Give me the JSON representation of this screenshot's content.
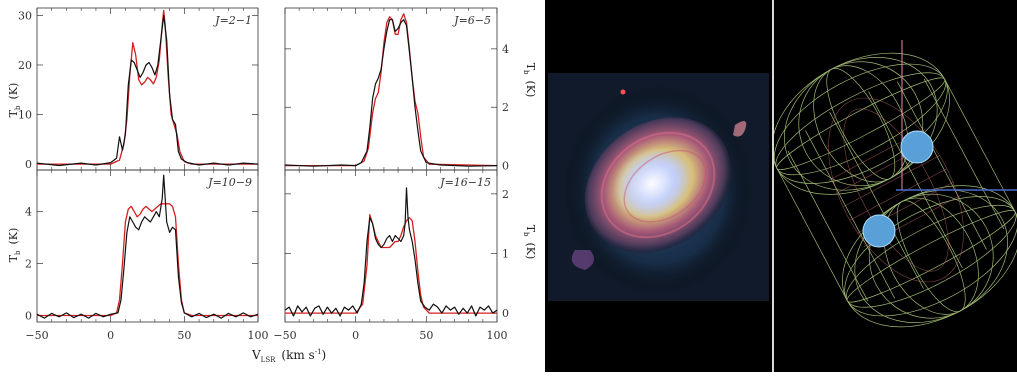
{
  "chart_data": {
    "type": "line",
    "x_label": "V",
    "x_label_sub": "LSR",
    "x_label_units": "(km s",
    "x_label_sup": "-1",
    "x_label_close": ")",
    "y_label": "T",
    "y_label_sub": "b",
    "y_label_units": "(K)",
    "xlim": [
      -50,
      100
    ],
    "x_ticks": [
      "−50",
      "0",
      "50",
      "100"
    ],
    "series_colors": {
      "observed": "#111111",
      "model": "#d42020"
    },
    "panels": [
      {
        "id": "p1",
        "label": "J=2−1",
        "ylim": [
          -1.2,
          31.5
        ],
        "y_ticks": [
          "0",
          "10",
          "20",
          "30"
        ],
        "y_tick_values": [
          0,
          10,
          20,
          30
        ],
        "y_side": "left",
        "observed": [
          [
            -50,
            0.2
          ],
          [
            -35,
            -0.3
          ],
          [
            -20,
            0.2
          ],
          [
            -10,
            -0.2
          ],
          [
            0,
            0.3
          ],
          [
            4,
            1.2
          ],
          [
            6,
            5.5
          ],
          [
            8,
            2.8
          ],
          [
            10,
            6
          ],
          [
            12,
            16
          ],
          [
            14,
            21
          ],
          [
            16,
            20.5
          ],
          [
            18,
            19
          ],
          [
            20,
            17.5
          ],
          [
            22,
            18.5
          ],
          [
            24,
            20
          ],
          [
            26,
            20.5
          ],
          [
            28,
            19.5
          ],
          [
            30,
            18
          ],
          [
            32,
            20
          ],
          [
            34,
            25
          ],
          [
            36,
            30
          ],
          [
            38,
            25
          ],
          [
            40,
            14
          ],
          [
            42,
            9
          ],
          [
            44,
            8
          ],
          [
            46,
            2.5
          ],
          [
            48,
            1
          ],
          [
            52,
            0.3
          ],
          [
            60,
            -0.2
          ],
          [
            70,
            0.2
          ],
          [
            80,
            -0.2
          ],
          [
            90,
            0.2
          ],
          [
            100,
            0
          ]
        ],
        "model": [
          [
            -50,
            0
          ],
          [
            0,
            0
          ],
          [
            6,
            0.8
          ],
          [
            9,
            4
          ],
          [
            11,
            9
          ],
          [
            13,
            18
          ],
          [
            15,
            24.5
          ],
          [
            17,
            22
          ],
          [
            19,
            17
          ],
          [
            21,
            16
          ],
          [
            23,
            16.5
          ],
          [
            25,
            17.5
          ],
          [
            27,
            17
          ],
          [
            29,
            16.2
          ],
          [
            31,
            17.5
          ],
          [
            33,
            21
          ],
          [
            35,
            28
          ],
          [
            36,
            31
          ],
          [
            37,
            28
          ],
          [
            39,
            18
          ],
          [
            41,
            10
          ],
          [
            43,
            8
          ],
          [
            45,
            6
          ],
          [
            47,
            2.5
          ],
          [
            50,
            0.5
          ],
          [
            55,
            0
          ],
          [
            100,
            0
          ]
        ]
      },
      {
        "id": "p2",
        "label": "J=6−5",
        "ylim": [
          -0.15,
          5.4
        ],
        "y_ticks": [
          "0",
          "2",
          "4"
        ],
        "y_tick_values": [
          0,
          2,
          4
        ],
        "y_side": "right",
        "observed": [
          [
            -50,
            0.02
          ],
          [
            -30,
            -0.02
          ],
          [
            -10,
            0.02
          ],
          [
            0,
            0
          ],
          [
            4,
            0.1
          ],
          [
            8,
            0.5
          ],
          [
            10,
            1.3
          ],
          [
            12,
            2.3
          ],
          [
            14,
            2.8
          ],
          [
            16,
            3.0
          ],
          [
            18,
            3.3
          ],
          [
            20,
            4.0
          ],
          [
            22,
            4.6
          ],
          [
            24,
            5.0
          ],
          [
            26,
            5.0
          ],
          [
            28,
            4.6
          ],
          [
            30,
            4.7
          ],
          [
            32,
            4.9
          ],
          [
            34,
            5.0
          ],
          [
            36,
            4.8
          ],
          [
            38,
            3.9
          ],
          [
            40,
            3.0
          ],
          [
            42,
            2.0
          ],
          [
            44,
            1.2
          ],
          [
            46,
            0.5
          ],
          [
            50,
            0.1
          ],
          [
            60,
            0.02
          ],
          [
            80,
            -0.02
          ],
          [
            100,
            0
          ]
        ],
        "model": [
          [
            -50,
            0
          ],
          [
            0,
            0
          ],
          [
            6,
            0.15
          ],
          [
            9,
            0.6
          ],
          [
            12,
            1.8
          ],
          [
            14,
            2.3
          ],
          [
            16,
            2.5
          ],
          [
            18,
            3.2
          ],
          [
            20,
            4.2
          ],
          [
            22,
            4.9
          ],
          [
            24,
            5.1
          ],
          [
            26,
            5.0
          ],
          [
            28,
            4.5
          ],
          [
            30,
            4.5
          ],
          [
            32,
            5.0
          ],
          [
            34,
            5.2
          ],
          [
            36,
            4.9
          ],
          [
            38,
            4.0
          ],
          [
            40,
            3.0
          ],
          [
            42,
            2.2
          ],
          [
            44,
            1.8
          ],
          [
            46,
            1.0
          ],
          [
            48,
            0.3
          ],
          [
            52,
            0.05
          ],
          [
            100,
            0
          ]
        ]
      },
      {
        "id": "p3",
        "label": "J=10−9",
        "ylim": [
          -0.25,
          5.6
        ],
        "y_ticks": [
          "0",
          "2",
          "4"
        ],
        "y_tick_values": [
          0,
          2,
          4
        ],
        "y_side": "left",
        "observed": [
          [
            -50,
            0.05
          ],
          [
            -45,
            -0.1
          ],
          [
            -40,
            0.08
          ],
          [
            -35,
            -0.05
          ],
          [
            -30,
            0.1
          ],
          [
            -25,
            -0.08
          ],
          [
            -20,
            0.05
          ],
          [
            -15,
            -0.1
          ],
          [
            -10,
            0.08
          ],
          [
            -5,
            -0.05
          ],
          [
            0,
            0.05
          ],
          [
            5,
            0.1
          ],
          [
            7,
            0.6
          ],
          [
            9,
            1.8
          ],
          [
            11,
            3.2
          ],
          [
            13,
            3.8
          ],
          [
            15,
            3.6
          ],
          [
            17,
            3.4
          ],
          [
            19,
            3.3
          ],
          [
            21,
            3.6
          ],
          [
            23,
            3.8
          ],
          [
            25,
            3.7
          ],
          [
            27,
            3.6
          ],
          [
            29,
            3.8
          ],
          [
            31,
            4.0
          ],
          [
            33,
            3.8
          ],
          [
            35,
            4.5
          ],
          [
            36,
            5.4
          ],
          [
            37,
            4.5
          ],
          [
            38,
            3.6
          ],
          [
            40,
            3.2
          ],
          [
            42,
            3.4
          ],
          [
            44,
            3.3
          ],
          [
            46,
            1.5
          ],
          [
            48,
            0.5
          ],
          [
            50,
            0.1
          ],
          [
            55,
            -0.05
          ],
          [
            60,
            0.08
          ],
          [
            65,
            -0.08
          ],
          [
            70,
            0.05
          ],
          [
            75,
            -0.1
          ],
          [
            80,
            0.08
          ],
          [
            85,
            -0.05
          ],
          [
            90,
            0.1
          ],
          [
            95,
            -0.05
          ],
          [
            100,
            0.05
          ]
        ],
        "model": [
          [
            -50,
            0
          ],
          [
            0,
            0
          ],
          [
            4,
            0.1
          ],
          [
            6,
            0.6
          ],
          [
            8,
            2
          ],
          [
            10,
            3.6
          ],
          [
            12,
            4.1
          ],
          [
            14,
            4.2
          ],
          [
            16,
            4.0
          ],
          [
            18,
            3.8
          ],
          [
            20,
            3.9
          ],
          [
            22,
            4.1
          ],
          [
            24,
            4.2
          ],
          [
            26,
            4.1
          ],
          [
            28,
            4.0
          ],
          [
            30,
            4.1
          ],
          [
            32,
            4.2
          ],
          [
            34,
            4.3
          ],
          [
            36,
            4.3
          ],
          [
            38,
            4.3
          ],
          [
            40,
            4.3
          ],
          [
            42,
            4.2
          ],
          [
            44,
            3.8
          ],
          [
            46,
            2
          ],
          [
            48,
            0.6
          ],
          [
            50,
            0.1
          ],
          [
            55,
            0
          ],
          [
            100,
            0
          ]
        ]
      },
      {
        "id": "p4",
        "label": "J=16−15",
        "ylim": [
          -0.15,
          2.4
        ],
        "y_ticks": [
          "0",
          "1",
          "2"
        ],
        "y_tick_values": [
          0,
          1,
          2
        ],
        "y_side": "right",
        "observed": [
          [
            -50,
            0.05
          ],
          [
            -47,
            0.1
          ],
          [
            -44,
            -0.05
          ],
          [
            -41,
            0.12
          ],
          [
            -38,
            0.02
          ],
          [
            -35,
            0.1
          ],
          [
            -32,
            -0.05
          ],
          [
            -29,
            0.08
          ],
          [
            -26,
            0.12
          ],
          [
            -23,
            -0.02
          ],
          [
            -20,
            0.1
          ],
          [
            -17,
            0.0
          ],
          [
            -14,
            0.08
          ],
          [
            -11,
            -0.05
          ],
          [
            -8,
            0.1
          ],
          [
            -5,
            0.05
          ],
          [
            -2,
            0.12
          ],
          [
            1,
            0.0
          ],
          [
            4,
            0.15
          ],
          [
            6,
            0.5
          ],
          [
            8,
            1.2
          ],
          [
            10,
            1.6
          ],
          [
            12,
            1.5
          ],
          [
            14,
            1.25
          ],
          [
            16,
            1.15
          ],
          [
            18,
            1.1
          ],
          [
            20,
            1.15
          ],
          [
            22,
            1.25
          ],
          [
            24,
            1.3
          ],
          [
            26,
            1.2
          ],
          [
            28,
            1.3
          ],
          [
            30,
            1.25
          ],
          [
            32,
            1.2
          ],
          [
            34,
            1.3
          ],
          [
            35,
            1.5
          ],
          [
            36,
            2.1
          ],
          [
            37,
            1.6
          ],
          [
            38,
            1.4
          ],
          [
            40,
            1.2
          ],
          [
            42,
            0.9
          ],
          [
            44,
            0.5
          ],
          [
            46,
            0.2
          ],
          [
            49,
            0.1
          ],
          [
            52,
            0.05
          ],
          [
            55,
            0.15
          ],
          [
            58,
            0.1
          ],
          [
            61,
            0.0
          ],
          [
            64,
            0.12
          ],
          [
            67,
            0.05
          ],
          [
            70,
            0.1
          ],
          [
            73,
            -0.02
          ],
          [
            76,
            0.08
          ],
          [
            79,
            0.0
          ],
          [
            82,
            0.12
          ],
          [
            85,
            -0.05
          ],
          [
            88,
            0.1
          ],
          [
            91,
            0.05
          ],
          [
            94,
            0.12
          ],
          [
            97,
            0.0
          ],
          [
            100,
            0.05
          ]
        ],
        "model": [
          [
            -50,
            0
          ],
          [
            0,
            0
          ],
          [
            5,
            0.15
          ],
          [
            8,
            0.8
          ],
          [
            10,
            1.65
          ],
          [
            12,
            1.5
          ],
          [
            14,
            1.3
          ],
          [
            16,
            1.2
          ],
          [
            18,
            1.1
          ],
          [
            20,
            1.1
          ],
          [
            22,
            1.1
          ],
          [
            24,
            1.1
          ],
          [
            26,
            1.15
          ],
          [
            28,
            1.2
          ],
          [
            30,
            1.2
          ],
          [
            32,
            1.3
          ],
          [
            34,
            1.45
          ],
          [
            36,
            1.55
          ],
          [
            38,
            1.6
          ],
          [
            40,
            1.55
          ],
          [
            42,
            1.2
          ],
          [
            44,
            0.7
          ],
          [
            46,
            0.3
          ],
          [
            48,
            0.1
          ],
          [
            52,
            0
          ],
          [
            100,
            0
          ]
        ]
      }
    ]
  },
  "images": {
    "nebula": "nebula-composite-image",
    "model": "wireframe-3d-model"
  }
}
